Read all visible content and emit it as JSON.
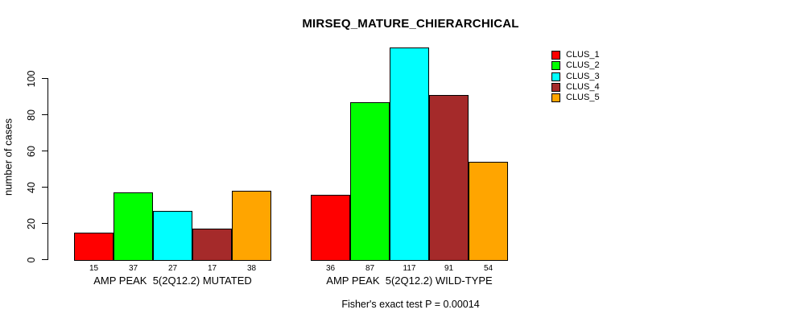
{
  "chart_data": {
    "type": "bar",
    "title": "MIRSEQ_MATURE_CHIERARCHICAL",
    "xlabel": "",
    "ylabel": "number of cases",
    "ylim": [
      0,
      120
    ],
    "yticks": [
      0,
      20,
      40,
      60,
      80,
      100
    ],
    "grid": false,
    "legend_position": "right-outside",
    "bar_value_labels": true,
    "categories": [
      "AMP PEAK  5(2Q12.2) MUTATED",
      "AMP PEAK  5(2Q12.2) WILD-TYPE"
    ],
    "series": [
      {
        "name": "CLUS_1",
        "color": "#FF0000",
        "values": [
          15,
          36
        ]
      },
      {
        "name": "CLUS_2",
        "color": "#00FF00",
        "values": [
          37,
          87
        ]
      },
      {
        "name": "CLUS_3",
        "color": "#00FFFF",
        "values": [
          27,
          117
        ]
      },
      {
        "name": "CLUS_4",
        "color": "#A52A2A",
        "values": [
          17,
          91
        ]
      },
      {
        "name": "CLUS_5",
        "color": "#FFA500",
        "values": [
          38,
          54
        ]
      }
    ],
    "annotation": "Fisher's exact test P = 0.00014"
  }
}
